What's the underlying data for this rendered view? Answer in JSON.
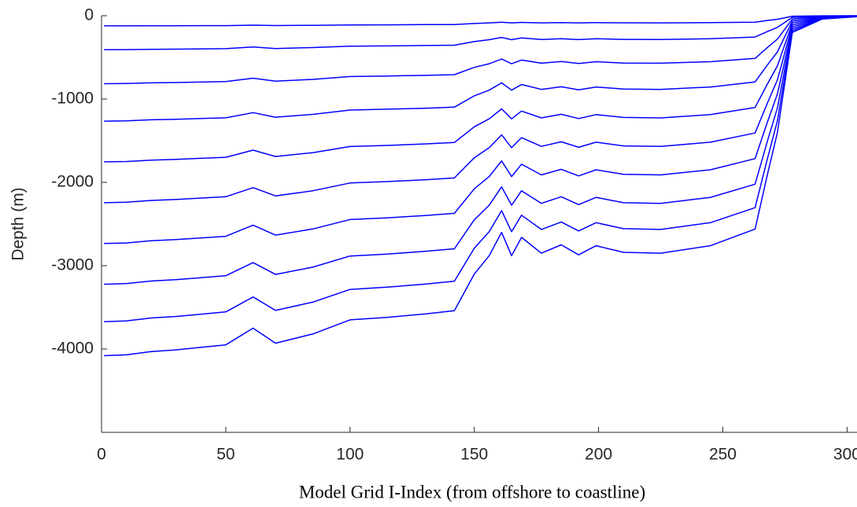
{
  "chart_data": {
    "type": "line",
    "xlabel": "Model Grid I-Index (from offshore to coastline)",
    "ylabel": "Depth (m)",
    "xlim": [
      0,
      304
    ],
    "ylim": [
      -5000,
      0
    ],
    "xticks": [
      0,
      50,
      100,
      150,
      200,
      250,
      300
    ],
    "yticks": [
      -4000,
      -3000,
      -2000,
      -1000,
      0
    ],
    "grid": false,
    "x": [
      1,
      10,
      20,
      30,
      40,
      50,
      61,
      70,
      85,
      100,
      115,
      130,
      142,
      150,
      156,
      161,
      165,
      169,
      177,
      185,
      192,
      199,
      210,
      225,
      245,
      263,
      268,
      272,
      278,
      290,
      310
    ],
    "series": [
      {
        "color": "#0000ff",
        "values": [
          -4080,
          -4070,
          -4030,
          -4010,
          -3980,
          -3950,
          -3750,
          -3930,
          -3820,
          -3650,
          -3620,
          -3580,
          -3540,
          -3100,
          -2880,
          -2600,
          -2880,
          -2660,
          -2850,
          -2750,
          -2870,
          -2760,
          -2840,
          -2850,
          -2760,
          -2560,
          -1900,
          -1400,
          -200,
          -40,
          0
        ]
      },
      {
        "color": "#0000ff",
        "values": [
          -3672,
          -3663,
          -3627,
          -3609,
          -3582,
          -3555,
          -3375,
          -3537,
          -3438,
          -3285,
          -3258,
          -3222,
          -3186,
          -2790,
          -2592,
          -2340,
          -2592,
          -2394,
          -2565,
          -2475,
          -2583,
          -2484,
          -2556,
          -2565,
          -2484,
          -2304,
          -1710,
          -1260,
          -180,
          -36,
          0
        ]
      },
      {
        "color": "#0000ff",
        "values": [
          -3223,
          -3215,
          -3184,
          -3168,
          -3144,
          -3121,
          -2963,
          -3105,
          -3018,
          -2884,
          -2860,
          -2828,
          -2797,
          -2449,
          -2275,
          -2054,
          -2275,
          -2101,
          -2252,
          -2173,
          -2267,
          -2180,
          -2244,
          -2252,
          -2180,
          -2022,
          -1501,
          -1106,
          -158,
          -32,
          0
        ]
      },
      {
        "color": "#0000ff",
        "values": [
          -2734,
          -2727,
          -2700,
          -2687,
          -2667,
          -2647,
          -2513,
          -2633,
          -2559,
          -2446,
          -2425,
          -2399,
          -2372,
          -2077,
          -1930,
          -1742,
          -1930,
          -1782,
          -1910,
          -1843,
          -1923,
          -1849,
          -1903,
          -1910,
          -1849,
          -1715,
          -1273,
          -938,
          -134,
          -27,
          0
        ]
      },
      {
        "color": "#0000ff",
        "values": [
          -2244,
          -2239,
          -2217,
          -2206,
          -2189,
          -2173,
          -2063,
          -2162,
          -2101,
          -2008,
          -1991,
          -1969,
          -1947,
          -1705,
          -1584,
          -1430,
          -1584,
          -1463,
          -1568,
          -1513,
          -1579,
          -1518,
          -1562,
          -1568,
          -1518,
          -1408,
          -1045,
          -770,
          -110,
          -22,
          0
        ]
      },
      {
        "color": "#0000ff",
        "values": [
          -1754,
          -1750,
          -1733,
          -1724,
          -1711,
          -1699,
          -1613,
          -1690,
          -1643,
          -1570,
          -1557,
          -1539,
          -1522,
          -1333,
          -1238,
          -1118,
          -1238,
          -1144,
          -1226,
          -1183,
          -1234,
          -1187,
          -1221,
          -1226,
          -1187,
          -1101,
          -817,
          -602,
          -86,
          -17,
          0
        ]
      },
      {
        "color": "#0000ff",
        "values": [
          -1265,
          -1262,
          -1249,
          -1243,
          -1234,
          -1225,
          -1163,
          -1218,
          -1184,
          -1132,
          -1122,
          -1110,
          -1097,
          -961,
          -893,
          -806,
          -893,
          -825,
          -884,
          -853,
          -890,
          -856,
          -880,
          -884,
          -856,
          -794,
          -589,
          -434,
          -62,
          -12,
          0
        ]
      },
      {
        "color": "#0000ff",
        "values": [
          -816,
          -814,
          -806,
          -802,
          -796,
          -790,
          -750,
          -786,
          -764,
          -730,
          -724,
          -716,
          -708,
          -620,
          -576,
          -520,
          -576,
          -532,
          -570,
          -550,
          -574,
          -552,
          -568,
          -570,
          -552,
          -512,
          -380,
          -280,
          -40,
          -8,
          0
        ]
      },
      {
        "color": "#0000ff",
        "values": [
          -408,
          -407,
          -403,
          -401,
          -398,
          -395,
          -375,
          -393,
          -382,
          -365,
          -362,
          -358,
          -354,
          -310,
          -288,
          -260,
          -288,
          -266,
          -285,
          -275,
          -287,
          -276,
          -284,
          -285,
          -276,
          -256,
          -190,
          -140,
          -20,
          -4,
          0
        ]
      },
      {
        "color": "#0000ff",
        "values": [
          -122,
          -122,
          -121,
          -120,
          -119,
          -119,
          -113,
          -118,
          -115,
          -110,
          -109,
          -107,
          -106,
          -93,
          -86,
          -78,
          -86,
          -80,
          -86,
          -83,
          -86,
          -83,
          -85,
          -86,
          -83,
          -77,
          -57,
          -42,
          -6,
          -1,
          0
        ]
      }
    ]
  }
}
